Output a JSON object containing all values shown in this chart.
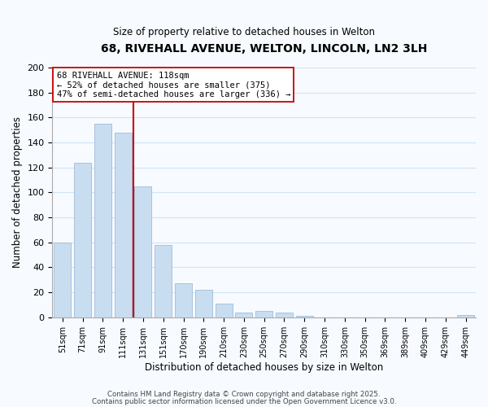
{
  "title": "68, RIVEHALL AVENUE, WELTON, LINCOLN, LN2 3LH",
  "subtitle": "Size of property relative to detached houses in Welton",
  "xlabel": "Distribution of detached houses by size in Welton",
  "ylabel": "Number of detached properties",
  "categories": [
    "51sqm",
    "71sqm",
    "91sqm",
    "111sqm",
    "131sqm",
    "151sqm",
    "170sqm",
    "190sqm",
    "210sqm",
    "230sqm",
    "250sqm",
    "270sqm",
    "290sqm",
    "310sqm",
    "330sqm",
    "350sqm",
    "369sqm",
    "389sqm",
    "409sqm",
    "429sqm",
    "449sqm"
  ],
  "values": [
    60,
    124,
    155,
    148,
    105,
    58,
    27,
    22,
    11,
    4,
    5,
    4,
    1,
    0,
    0,
    0,
    0,
    0,
    0,
    0,
    2
  ],
  "bar_color": "#c8ddf0",
  "bar_edge_color": "#a0bcd8",
  "vline_x_index": 3.5,
  "vline_color": "#cc0000",
  "annotation_title": "68 RIVEHALL AVENUE: 118sqm",
  "annotation_line1": "← 52% of detached houses are smaller (375)",
  "annotation_line2": "47% of semi-detached houses are larger (336) →",
  "annotation_box_color": "#ffffff",
  "annotation_box_edge": "#cc0000",
  "ylim": [
    0,
    200
  ],
  "yticks": [
    0,
    20,
    40,
    60,
    80,
    100,
    120,
    140,
    160,
    180,
    200
  ],
  "footer1": "Contains HM Land Registry data © Crown copyright and database right 2025.",
  "footer2": "Contains public sector information licensed under the Open Government Licence v3.0.",
  "grid_color": "#d0e4f5",
  "background_color": "#f7faff"
}
